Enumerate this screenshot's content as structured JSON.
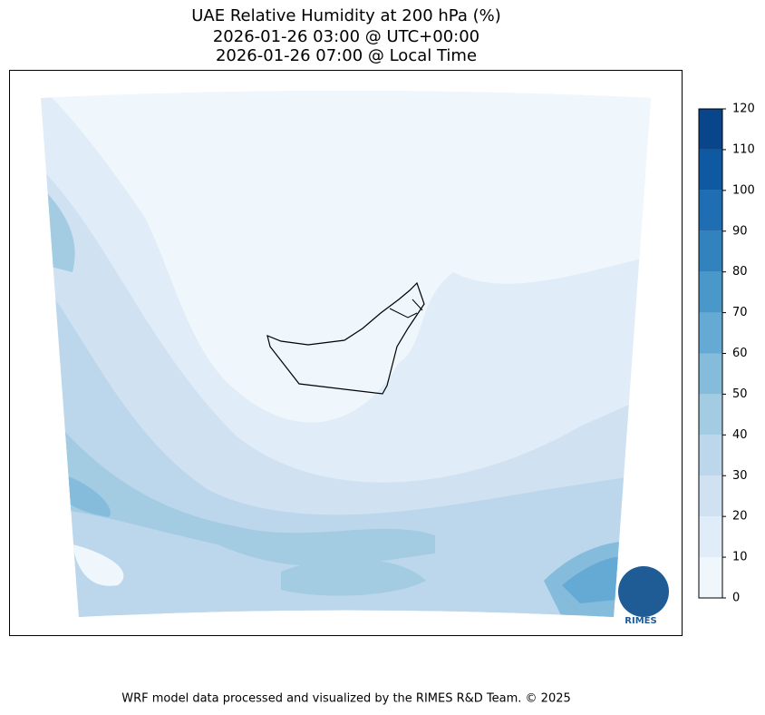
{
  "title": {
    "line1": "UAE Relative Humidity at 200 hPa (%)",
    "line2": "2026-01-26 03:00 @ UTC+00:00",
    "line3": "2026-01-26 07:00 @ Local Time"
  },
  "colorbar": {
    "lim": [
      0,
      120
    ],
    "ticks": [
      0,
      10,
      20,
      30,
      40,
      50,
      60,
      70,
      80,
      90,
      100,
      110,
      120
    ],
    "colors": [
      "#eff6fc",
      "#e0ecf7",
      "#d0e1f2",
      "#bcd7eb",
      "#a3cce3",
      "#85bcdc",
      "#65aad4",
      "#4a98c9",
      "#3282be",
      "#1f6eb3",
      "#0e59a2",
      "#08458a"
    ]
  },
  "logo": "RIMES",
  "footer": "WRF model data processed and visualized by the RIMES R&D Team. © 2025"
}
